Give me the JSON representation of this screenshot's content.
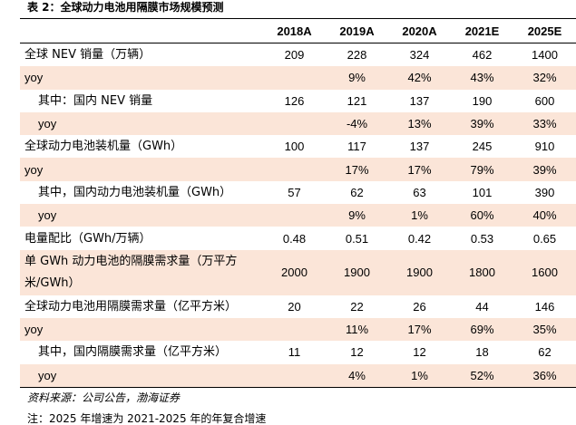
{
  "title": "表 2：全球动力电池用隔膜市场规模预测",
  "columns": [
    "",
    "2018A",
    "2019A",
    "2020A",
    "2021E",
    "2025E"
  ],
  "rows": [
    {
      "label": "全球 NEV 销量（万辆）",
      "indent": false,
      "yoy": false,
      "values": [
        "209",
        "228",
        "324",
        "462",
        "1400"
      ]
    },
    {
      "label": "yoy",
      "indent": false,
      "yoy": true,
      "values": [
        "",
        "9%",
        "42%",
        "43%",
        "32%"
      ]
    },
    {
      "label": "其中：国内 NEV 销量",
      "indent": true,
      "yoy": false,
      "values": [
        "126",
        "121",
        "137",
        "190",
        "600"
      ]
    },
    {
      "label": "yoy",
      "indent": true,
      "yoy": true,
      "values": [
        "",
        "-4%",
        "13%",
        "39%",
        "33%"
      ]
    },
    {
      "label": "全球动力电池装机量（GWh）",
      "indent": false,
      "yoy": false,
      "values": [
        "100",
        "117",
        "137",
        "245",
        "910"
      ]
    },
    {
      "label": "yoy",
      "indent": false,
      "yoy": true,
      "values": [
        "",
        "17%",
        "17%",
        "79%",
        "39%"
      ]
    },
    {
      "label": "其中，国内动力电池装机量（GWh）",
      "indent": true,
      "yoy": false,
      "values": [
        "57",
        "62",
        "63",
        "101",
        "390"
      ]
    },
    {
      "label": "yoy",
      "indent": true,
      "yoy": true,
      "values": [
        "",
        "9%",
        "1%",
        "60%",
        "40%"
      ]
    },
    {
      "label": "电量配比（GWh/万辆）",
      "indent": false,
      "yoy": false,
      "values": [
        "0.48",
        "0.51",
        "0.42",
        "0.53",
        "0.65"
      ]
    },
    {
      "label": "单 GWh 动力电池的隔膜需求量（万平方米/GWh）",
      "indent": false,
      "yoy": false,
      "tall": true,
      "values": [
        "2000",
        "1900",
        "1900",
        "1800",
        "1600"
      ]
    },
    {
      "label": "全球动力电池用隔膜需求量（亿平方米）",
      "indent": false,
      "yoy": false,
      "values": [
        "20",
        "22",
        "26",
        "44",
        "146"
      ]
    },
    {
      "label": "yoy",
      "indent": false,
      "yoy": true,
      "values": [
        "",
        "11%",
        "17%",
        "69%",
        "35%"
      ]
    },
    {
      "label": "其中，国内隔膜需求量（亿平方米）",
      "indent": true,
      "yoy": false,
      "values": [
        "11",
        "12",
        "12",
        "18",
        "62"
      ]
    },
    {
      "label": "yoy",
      "indent": true,
      "yoy": true,
      "values": [
        "",
        "4%",
        "1%",
        "52%",
        "36%"
      ]
    }
  ],
  "source": "资料来源：公司公告，渤海证券",
  "note": "注：2025 年增速为 2021-2025 年的年复合增速",
  "colors": {
    "shade": "#fbe5d8",
    "rule": "#000000"
  }
}
